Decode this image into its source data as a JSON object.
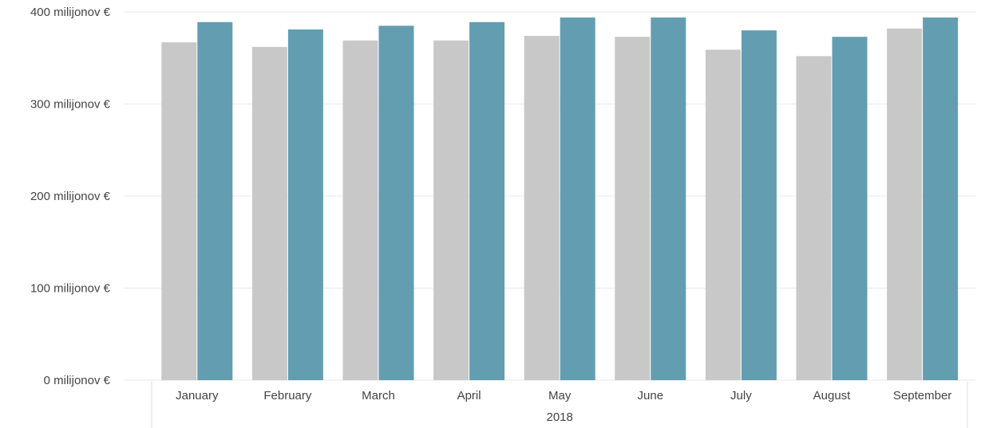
{
  "chart_data": {
    "type": "bar",
    "title": "",
    "xlabel": "",
    "ylabel": "",
    "categories": [
      "January",
      "February",
      "March",
      "April",
      "May",
      "June",
      "July",
      "August",
      "September"
    ],
    "x_group_label": "2018",
    "series": [
      {
        "color": "#c8c8c8",
        "values": [
          367,
          362,
          369,
          369,
          374,
          373,
          359,
          352,
          382
        ]
      },
      {
        "color": "#639eb0",
        "values": [
          389,
          381,
          385,
          389,
          394,
          394,
          380,
          373,
          394
        ]
      }
    ],
    "ylim": [
      0,
      400
    ],
    "y_ticks": [
      0,
      100,
      200,
      300,
      400
    ],
    "y_tick_labels": [
      "0 milijonov €",
      "100 milijonov €",
      "200 milijonov €",
      "300 milijonov €",
      "400 milijonov €"
    ],
    "grid": true,
    "legend": "none"
  }
}
